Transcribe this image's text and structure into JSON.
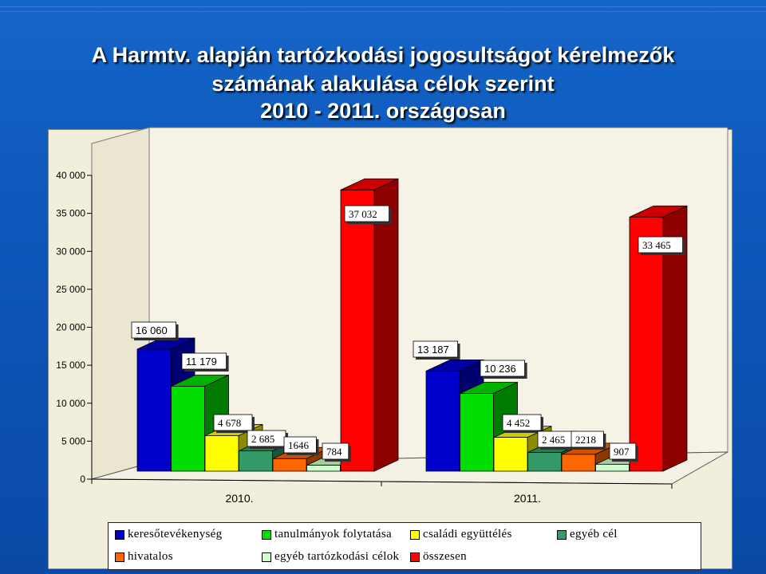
{
  "title": {
    "line1": "A  Harmtv. alapján tartózkodási jogosultságot kérelmezők",
    "line2": "számának alakulása célok szerint",
    "line3": "2010  -  2011. országosan"
  },
  "chart_data": {
    "type": "bar",
    "style": "3d-clustered",
    "categories": [
      "2010.",
      "2011."
    ],
    "series": [
      {
        "name": "keresőtevékenység",
        "color": "#0000cc",
        "values": [
          16060,
          13187
        ],
        "labels": [
          "16 060",
          "13 187"
        ]
      },
      {
        "name": "tanulmányok folytatása",
        "color": "#00dd00",
        "values": [
          11179,
          10236
        ],
        "labels": [
          "11 179",
          "10 236"
        ]
      },
      {
        "name": "családi együttélés",
        "color": "#ffff00",
        "values": [
          4678,
          4452
        ],
        "labels": [
          "4 678",
          "4 452"
        ]
      },
      {
        "name": "egyéb cél",
        "color": "#339966",
        "values": [
          2685,
          2465
        ],
        "labels": [
          "2 685",
          "2 465"
        ]
      },
      {
        "name": "hivatalos",
        "color": "#ff6600",
        "values": [
          1646,
          2218
        ],
        "labels": [
          "1646",
          "2218"
        ]
      },
      {
        "name": "egyéb tartózkodási célok",
        "color": "#ccffcc",
        "values": [
          784,
          907
        ],
        "labels": [
          "784",
          "907"
        ]
      },
      {
        "name": "összesen",
        "color": "#ff0000",
        "values": [
          37032,
          33465
        ],
        "labels": [
          "37 032",
          "33 465"
        ]
      }
    ],
    "yticks": [
      "0",
      "5 000",
      "10 000",
      "15 000",
      "20 000",
      "25 000",
      "30 000",
      "35 000",
      "40 000"
    ],
    "ylim": [
      0,
      40000
    ],
    "grid": false,
    "legend_position": "bottom"
  }
}
